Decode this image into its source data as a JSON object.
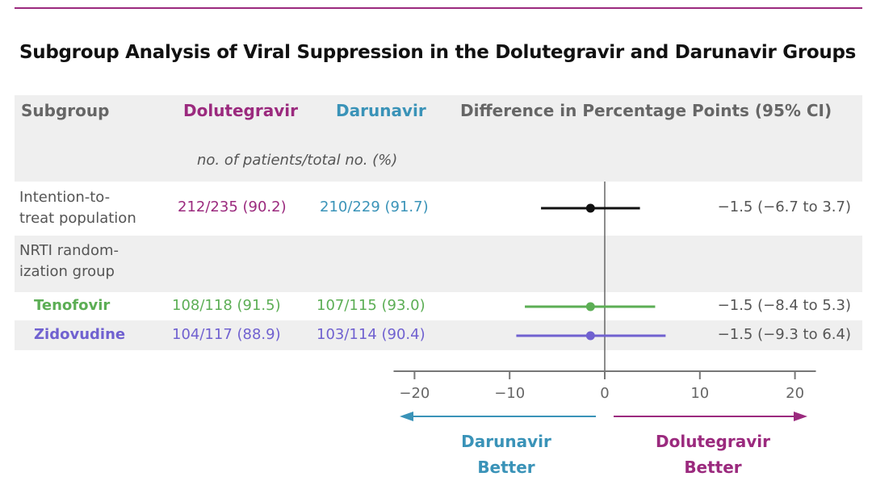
{
  "title": "Subgroup Analysis of Viral Suppression in the Dolutegravir and Darunavir Groups",
  "colors": {
    "dolutegravir": "#9b2a7e",
    "darunavir": "#3a93b8",
    "overall": "#111111",
    "tenofovir": "#5cae55",
    "zidovudine": "#7061d0",
    "header_gray": "#666666",
    "band": "#efefef"
  },
  "header": {
    "subgroup": "Subgroup",
    "dolutegravir": "Dolutegravir",
    "darunavir": "Darunavir",
    "difference": "Difference in Percentage Points (95% CI)",
    "units": "no. of patients/total no. (%)"
  },
  "chart_data": {
    "type": "forest",
    "title": "Subgroup Analysis of Viral Suppression in the Dolutegravir and Darunavir Groups",
    "xlabel": "",
    "xlim": [
      -22.5,
      22.5
    ],
    "xticks": [
      "−20",
      "−10",
      "0",
      "10",
      "20"
    ],
    "xtick_values": [
      -20,
      -10,
      0,
      10,
      20
    ],
    "reference_line": 0,
    "rows": [
      {
        "label": "Intention-to-treat population",
        "label_lines": [
          "Intention-to-",
          "treat population"
        ],
        "dolutegravir": "212/235 (90.2)",
        "darunavir": "210/229 (91.7)",
        "estimate": -1.5,
        "ci_low": -6.7,
        "ci_high": 3.7,
        "ci_text": "−1.5 (−6.7 to 3.7)",
        "color": "#111111"
      },
      {
        "label": "NRTI randomization group",
        "label_lines": [
          "NRTI random-",
          "ization group"
        ],
        "is_group_header": true
      },
      {
        "label": "Tenofovir",
        "dolutegravir": "108/118 (91.5)",
        "darunavir": "107/115 (93.0)",
        "estimate": -1.5,
        "ci_low": -8.4,
        "ci_high": 5.3,
        "ci_text": "−1.5 (−8.4 to 5.3)",
        "color": "#5cae55"
      },
      {
        "label": "Zidovudine",
        "dolutegravir": "104/117 (88.9)",
        "darunavir": "103/114 (90.4)",
        "estimate": -1.5,
        "ci_low": -9.3,
        "ci_high": 6.4,
        "ci_text": "−1.5 (−9.3 to 6.4)",
        "color": "#7061d0"
      }
    ],
    "direction_labels": {
      "left": [
        "Darunavir",
        "Better"
      ],
      "right": [
        "Dolutegravir",
        "Better"
      ]
    }
  }
}
